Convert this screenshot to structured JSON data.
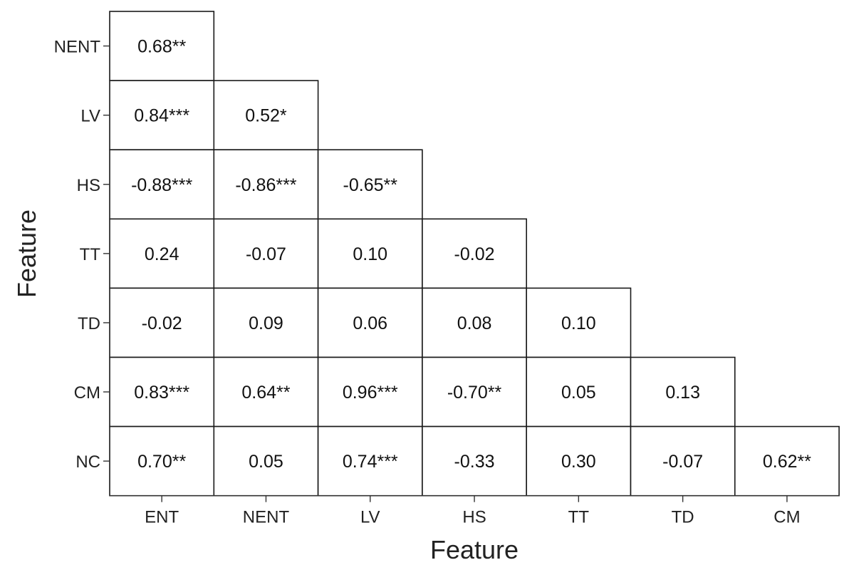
{
  "chart_data": {
    "type": "table",
    "subtype": "lower-triangular correlation matrix",
    "xlabel": "Feature",
    "ylabel": "Feature",
    "columns": [
      "ENT",
      "NENT",
      "LV",
      "HS",
      "TT",
      "TD",
      "CM"
    ],
    "rows": [
      "NENT",
      "LV",
      "HS",
      "TT",
      "TD",
      "CM",
      "NC"
    ],
    "cells": [
      [
        "0.68**"
      ],
      [
        "0.84***",
        "0.52*"
      ],
      [
        "-0.88***",
        "-0.86***",
        "-0.65**"
      ],
      [
        "0.24",
        "-0.07",
        "0.10",
        "-0.02"
      ],
      [
        "-0.02",
        "0.09",
        "0.06",
        "0.08",
        "0.10"
      ],
      [
        "0.83***",
        "0.64**",
        "0.96***",
        "-0.70**",
        "0.05",
        "0.13"
      ],
      [
        "0.70**",
        "0.05",
        "0.74***",
        "-0.33",
        "0.30",
        "-0.07",
        "0.62**"
      ]
    ],
    "values": [
      [
        0.68
      ],
      [
        0.84,
        0.52
      ],
      [
        -0.88,
        -0.86,
        -0.65
      ],
      [
        0.24,
        -0.07,
        0.1,
        -0.02
      ],
      [
        -0.02,
        0.09,
        0.06,
        0.08,
        0.1
      ],
      [
        0.83,
        0.64,
        0.96,
        -0.7,
        0.05,
        0.13
      ],
      [
        0.7,
        0.05,
        0.74,
        -0.33,
        0.3,
        -0.07,
        0.62
      ]
    ],
    "grid": false,
    "legend": "none",
    "colors": {
      "cell_fill": "#ffffff",
      "border": "#1a1a1a",
      "text": "#111111"
    }
  }
}
